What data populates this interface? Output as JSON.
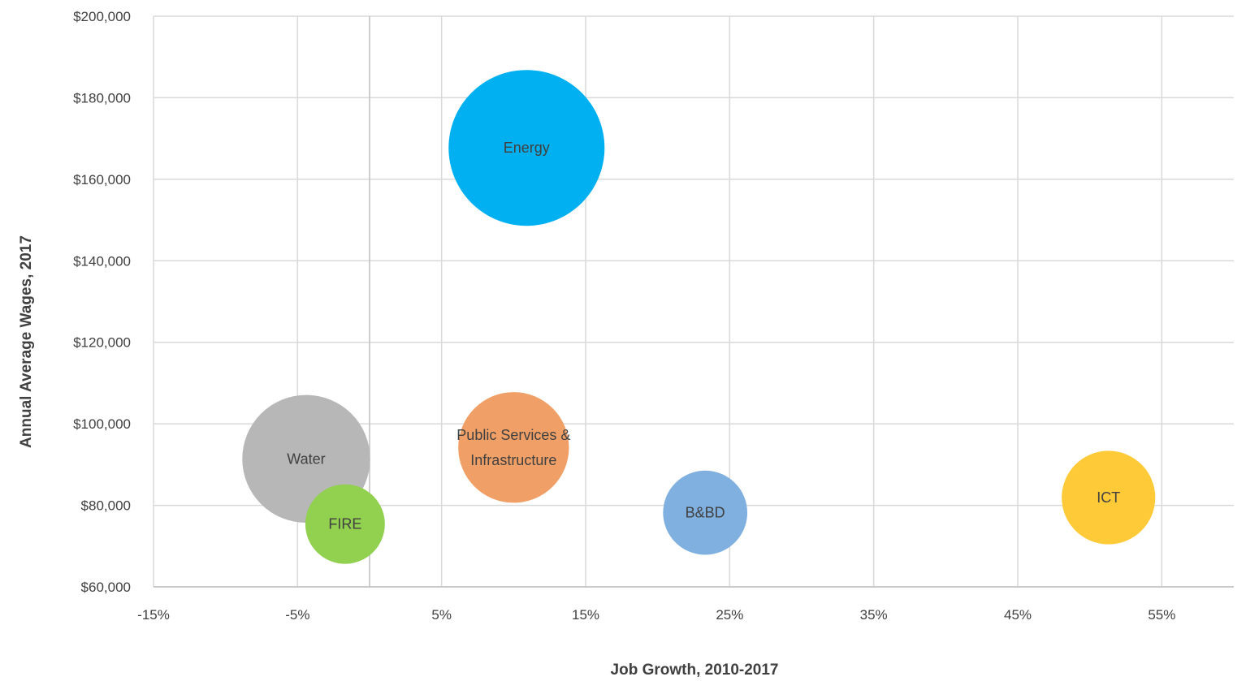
{
  "chart_data": {
    "type": "bubble",
    "title": "",
    "xlabel": "Job Growth, 2010-2017",
    "ylabel": "Annual Average Wages, 2017",
    "xlim": [
      -15,
      60
    ],
    "ylim": [
      60000,
      200000
    ],
    "x_ticks": [
      -15,
      -5,
      5,
      15,
      25,
      35,
      45,
      55
    ],
    "x_tick_labels": [
      "-15%",
      "-5%",
      "5%",
      "15%",
      "25%",
      "35%",
      "45%",
      "55%"
    ],
    "y_ticks": [
      60000,
      80000,
      100000,
      120000,
      140000,
      160000,
      180000,
      200000
    ],
    "y_tick_labels": [
      "$60,000",
      "$80,000",
      "$100,000",
      "$120,000",
      "$140,000",
      "$160,000",
      "$180,000",
      "$200,000"
    ],
    "grid": true,
    "legend": "none",
    "series": [
      {
        "label": "Energy",
        "x": 10.9,
        "y": 167700,
        "size": 1.0,
        "color": "#00b0f0"
      },
      {
        "label": "Water",
        "x": -4.4,
        "y": 91400,
        "size": 0.82,
        "color": "#b7b7b7"
      },
      {
        "label": "Public Services & Infrastructure",
        "x": 10.0,
        "y": 94200,
        "size": 0.71,
        "color": "#f0a066"
      },
      {
        "label": "FIRE",
        "x": -1.7,
        "y": 75400,
        "size": 0.51,
        "color": "#92d050"
      },
      {
        "label": "B&BD",
        "x": 23.3,
        "y": 78200,
        "size": 0.54,
        "color": "#7fb0e0"
      },
      {
        "label": "ICT",
        "x": 51.3,
        "y": 81900,
        "size": 0.6,
        "color": "#ffca38"
      }
    ]
  }
}
